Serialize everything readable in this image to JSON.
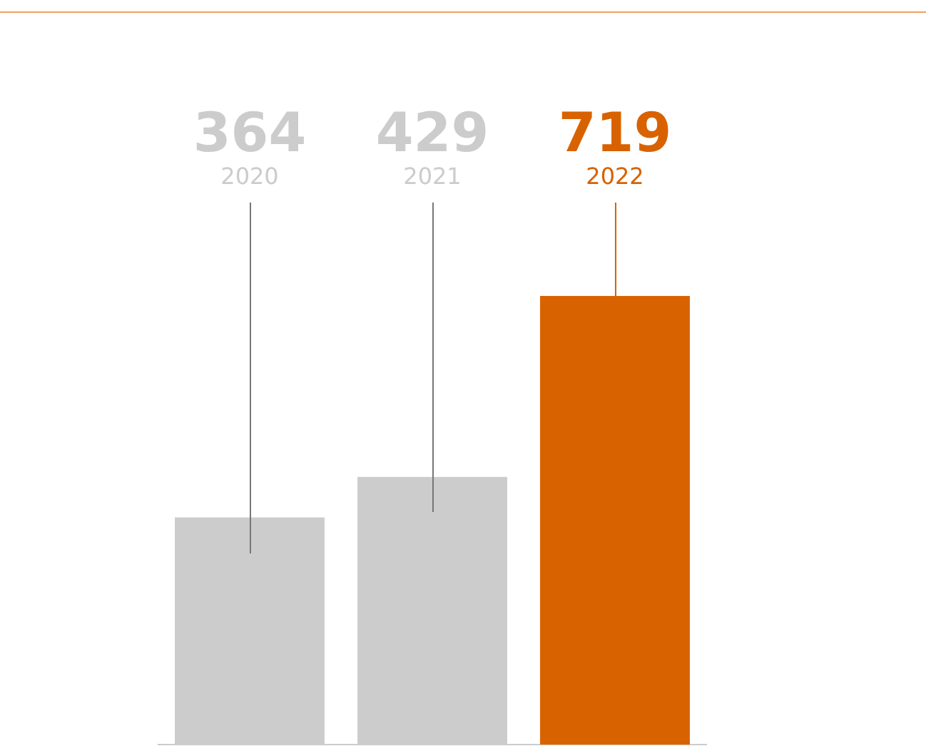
{
  "chart_data": {
    "type": "bar",
    "categories": [
      "2020",
      "2021",
      "2022"
    ],
    "values": [
      364,
      429,
      719
    ],
    "colors": [
      "#cccccc",
      "#cccccc",
      "#d96200"
    ],
    "data_labels": true,
    "tick_labels": false,
    "grid": false,
    "legend": false
  }
}
